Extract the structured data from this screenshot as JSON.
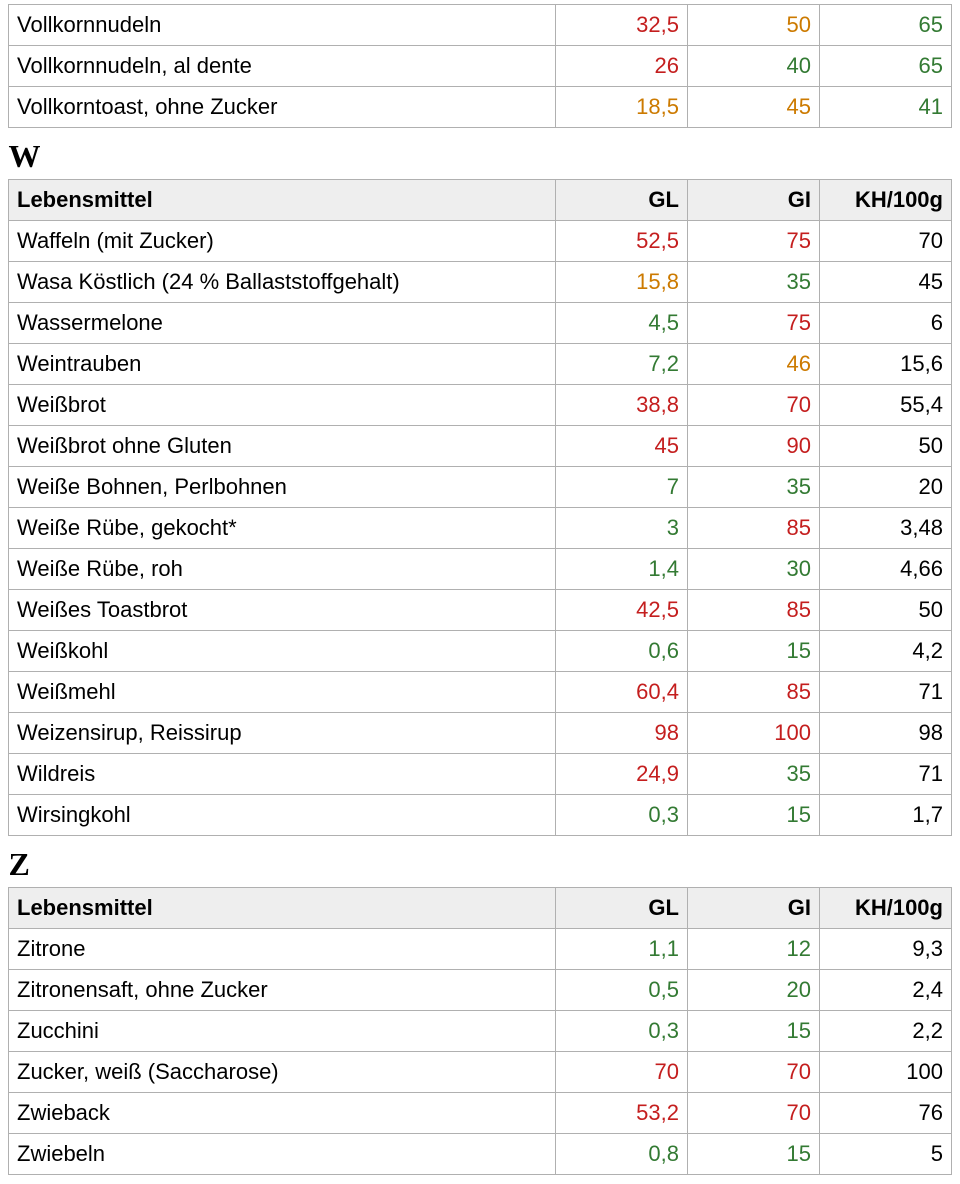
{
  "color_map": {
    "green": "c-green",
    "orange": "c-orange",
    "red": "c-red",
    "black": "c-black"
  },
  "initial_rows": [
    {
      "name": "Vollkornnudeln",
      "v1": {
        "val": "32,5",
        "c": "red"
      },
      "v2": {
        "val": "50",
        "c": "orange"
      },
      "v3": {
        "val": "65",
        "c": "green"
      }
    },
    {
      "name": "Vollkornnudeln, al dente",
      "v1": {
        "val": "26",
        "c": "red"
      },
      "v2": {
        "val": "40",
        "c": "green"
      },
      "v3": {
        "val": "65",
        "c": "green"
      }
    },
    {
      "name": "Vollkorntoast, ohne Zucker",
      "v1": {
        "val": "18,5",
        "c": "orange"
      },
      "v2": {
        "val": "45",
        "c": "orange"
      },
      "v3": {
        "val": "41",
        "c": "green"
      }
    }
  ],
  "sections": [
    {
      "letter": "W",
      "header": {
        "name": "Lebensmittel",
        "v1": "GL",
        "v2": "GI",
        "v3": "KH/100g"
      },
      "rows": [
        {
          "name": "Waffeln (mit Zucker)",
          "v1": {
            "val": "52,5",
            "c": "red"
          },
          "v2": {
            "val": "75",
            "c": "red"
          },
          "v3": {
            "val": "70",
            "c": "black"
          }
        },
        {
          "name": "Wasa Köstlich (24 % Ballaststoffgehalt)",
          "v1": {
            "val": "15,8",
            "c": "orange"
          },
          "v2": {
            "val": "35",
            "c": "green"
          },
          "v3": {
            "val": "45",
            "c": "black"
          }
        },
        {
          "name": "Wassermelone",
          "v1": {
            "val": "4,5",
            "c": "green"
          },
          "v2": {
            "val": "75",
            "c": "red"
          },
          "v3": {
            "val": "6",
            "c": "black"
          }
        },
        {
          "name": "Weintrauben",
          "v1": {
            "val": "7,2",
            "c": "green"
          },
          "v2": {
            "val": "46",
            "c": "orange"
          },
          "v3": {
            "val": "15,6",
            "c": "black"
          }
        },
        {
          "name": "Weißbrot",
          "v1": {
            "val": "38,8",
            "c": "red"
          },
          "v2": {
            "val": "70",
            "c": "red"
          },
          "v3": {
            "val": "55,4",
            "c": "black"
          }
        },
        {
          "name": "Weißbrot ohne Gluten",
          "v1": {
            "val": "45",
            "c": "red"
          },
          "v2": {
            "val": "90",
            "c": "red"
          },
          "v3": {
            "val": "50",
            "c": "black"
          }
        },
        {
          "name": "Weiße Bohnen, Perlbohnen",
          "v1": {
            "val": "7",
            "c": "green"
          },
          "v2": {
            "val": "35",
            "c": "green"
          },
          "v3": {
            "val": "20",
            "c": "black"
          }
        },
        {
          "name": "Weiße Rübe, gekocht*",
          "v1": {
            "val": "3",
            "c": "green"
          },
          "v2": {
            "val": "85",
            "c": "red"
          },
          "v3": {
            "val": "3,48",
            "c": "black"
          }
        },
        {
          "name": "Weiße Rübe, roh",
          "v1": {
            "val": "1,4",
            "c": "green"
          },
          "v2": {
            "val": "30",
            "c": "green"
          },
          "v3": {
            "val": "4,66",
            "c": "black"
          }
        },
        {
          "name": "Weißes Toastbrot",
          "v1": {
            "val": "42,5",
            "c": "red"
          },
          "v2": {
            "val": "85",
            "c": "red"
          },
          "v3": {
            "val": "50",
            "c": "black"
          }
        },
        {
          "name": "Weißkohl",
          "v1": {
            "val": "0,6",
            "c": "green"
          },
          "v2": {
            "val": "15",
            "c": "green"
          },
          "v3": {
            "val": "4,2",
            "c": "black"
          }
        },
        {
          "name": "Weißmehl",
          "v1": {
            "val": "60,4",
            "c": "red"
          },
          "v2": {
            "val": "85",
            "c": "red"
          },
          "v3": {
            "val": "71",
            "c": "black"
          }
        },
        {
          "name": "Weizensirup, Reissirup",
          "v1": {
            "val": "98",
            "c": "red"
          },
          "v2": {
            "val": "100",
            "c": "red"
          },
          "v3": {
            "val": "98",
            "c": "black"
          }
        },
        {
          "name": "Wildreis",
          "v1": {
            "val": "24,9",
            "c": "red"
          },
          "v2": {
            "val": "35",
            "c": "green"
          },
          "v3": {
            "val": "71",
            "c": "black"
          }
        },
        {
          "name": "Wirsingkohl",
          "v1": {
            "val": "0,3",
            "c": "green"
          },
          "v2": {
            "val": "15",
            "c": "green"
          },
          "v3": {
            "val": "1,7",
            "c": "black"
          }
        }
      ]
    },
    {
      "letter": "Z",
      "header": {
        "name": "Lebensmittel",
        "v1": "GL",
        "v2": "GI",
        "v3": "KH/100g"
      },
      "rows": [
        {
          "name": "Zitrone",
          "v1": {
            "val": "1,1",
            "c": "green"
          },
          "v2": {
            "val": "12",
            "c": "green"
          },
          "v3": {
            "val": "9,3",
            "c": "black"
          }
        },
        {
          "name": "Zitronensaft, ohne Zucker",
          "v1": {
            "val": "0,5",
            "c": "green"
          },
          "v2": {
            "val": "20",
            "c": "green"
          },
          "v3": {
            "val": "2,4",
            "c": "black"
          }
        },
        {
          "name": "Zucchini",
          "v1": {
            "val": "0,3",
            "c": "green"
          },
          "v2": {
            "val": "15",
            "c": "green"
          },
          "v3": {
            "val": "2,2",
            "c": "black"
          }
        },
        {
          "name": "Zucker, weiß (Saccharose)",
          "v1": {
            "val": "70",
            "c": "red"
          },
          "v2": {
            "val": "70",
            "c": "red"
          },
          "v3": {
            "val": "100",
            "c": "black"
          }
        },
        {
          "name": "Zwieback",
          "v1": {
            "val": "53,2",
            "c": "red"
          },
          "v2": {
            "val": "70",
            "c": "red"
          },
          "v3": {
            "val": "76",
            "c": "black"
          }
        },
        {
          "name": "Zwiebeln",
          "v1": {
            "val": "0,8",
            "c": "green"
          },
          "v2": {
            "val": "15",
            "c": "green"
          },
          "v3": {
            "val": "5",
            "c": "black"
          }
        }
      ]
    }
  ]
}
